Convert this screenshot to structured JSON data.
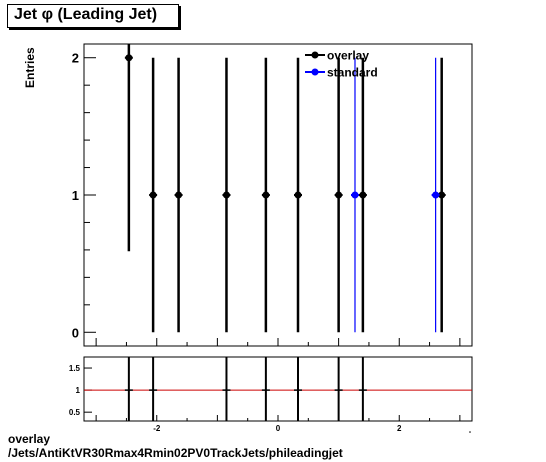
{
  "title": "Jet  φ (Leading Jet)",
  "footer": {
    "line1": "overlay",
    "line2": "/Jets/AntiKtVR30Rmax4Rmin02PV0TrackJets/phileadingjet"
  },
  "colors": {
    "overlay": "#000000",
    "standard": "#0000ff",
    "ratio_line": "#cc0000"
  },
  "chart_data": [
    {
      "type": "scatter",
      "title": "Jet  φ (Leading Jet)",
      "xlabel": "",
      "ylabel": "Entries",
      "xlim": [
        -3.2,
        3.2
      ],
      "ylim": [
        -0.1,
        2.1
      ],
      "yticks": [
        0,
        1,
        2
      ],
      "legend": {
        "placement": "top-right",
        "entries": [
          "overlay",
          "standard"
        ]
      },
      "series": [
        {
          "name": "overlay",
          "color": "#000000",
          "points": [
            {
              "x": -2.46,
              "y": 2,
              "err": 1.41
            },
            {
              "x": -2.06,
              "y": 1,
              "err": 1
            },
            {
              "x": -1.64,
              "y": 1,
              "err": 1
            },
            {
              "x": -0.85,
              "y": 1,
              "err": 1
            },
            {
              "x": -0.2,
              "y": 1,
              "err": 1
            },
            {
              "x": 0.33,
              "y": 1,
              "err": 1
            },
            {
              "x": 1.0,
              "y": 1,
              "err": 1
            },
            {
              "x": 1.4,
              "y": 1,
              "err": 1
            },
            {
              "x": 2.7,
              "y": 1,
              "err": 1
            }
          ]
        },
        {
          "name": "standard",
          "color": "#0000ff",
          "points": [
            {
              "x": 1.27,
              "y": 1,
              "err": 1
            },
            {
              "x": 2.6,
              "y": 1,
              "err": 1
            }
          ]
        }
      ]
    },
    {
      "type": "scatter",
      "title": "",
      "xlabel": "",
      "ylabel": "",
      "xlim": [
        -3.2,
        3.2
      ],
      "ylim": [
        0.3,
        1.75
      ],
      "yticks": [
        0.5,
        1,
        1.5
      ],
      "ytick_labels": [
        "0.5",
        "1",
        "1.5"
      ],
      "xticks": [
        -2,
        0,
        2
      ],
      "xtick_labels": [
        "-2",
        "0",
        "2"
      ],
      "reference_line": 1,
      "points": [
        {
          "x": -2.46,
          "y": 1
        },
        {
          "x": -2.06,
          "y": 1
        },
        {
          "x": -0.85,
          "y": 1
        },
        {
          "x": -0.2,
          "y": 1
        },
        {
          "x": 0.33,
          "y": 1
        },
        {
          "x": 1.0,
          "y": 1
        },
        {
          "x": 1.4,
          "y": 1
        }
      ]
    }
  ]
}
